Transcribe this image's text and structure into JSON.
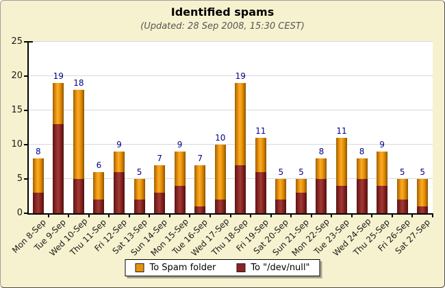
{
  "title": "Identified spams",
  "subtitle": "(Updated: 28 Sep 2008, 15:30 CEST)",
  "legend": {
    "items": [
      {
        "label": "To Spam folder",
        "color": "#E8920E"
      },
      {
        "label": "To \"/dev/null\"",
        "color": "#8C2321"
      }
    ]
  },
  "colors": {
    "background": "#F6F2CF",
    "plot_background": "#FFFFFF",
    "gridline": "#D9D9D9",
    "axis": "#000000",
    "value_label": "#00008B",
    "tick_label": "#1A1A1A",
    "subtitle_text": "#555555",
    "spam_folder": "#EE9311",
    "devnull": "#8E2A26"
  },
  "chart_data": {
    "type": "bar",
    "stacked": true,
    "title": "Identified spams",
    "subtitle": "(Updated: 28 Sep 2008, 15:30 CEST)",
    "categories": [
      "Mon 8-Sep",
      "Tue 9-Sep",
      "Wed 10-Sep",
      "Thu 11-Sep",
      "Fri 12-Sep",
      "Sat 13-Sep",
      "Sun 14-Sep",
      "Mon 15-Sep",
      "Tue 16-Sep",
      "Wed 17-Sep",
      "Thu 18-Sep",
      "Fri 19-Sep",
      "Sat 20-Sep",
      "Sun 21-Sep",
      "Mon 22-Sep",
      "Tue 23-Sep",
      "Wed 24-Sep",
      "Thu 25-Sep",
      "Fri 26-Sep",
      "Sat 27-Sep"
    ],
    "series": [
      {
        "name": "To \"/dev/null\"",
        "stack_position": "bottom",
        "color": "#8E2A26",
        "values": [
          3,
          13,
          5,
          2,
          6,
          2,
          3,
          4,
          1,
          2,
          7,
          6,
          2,
          3,
          5,
          4,
          5,
          4,
          2,
          1
        ]
      },
      {
        "name": "To Spam folder",
        "stack_position": "top",
        "color": "#EE9311",
        "values": [
          5,
          6,
          13,
          4,
          3,
          3,
          4,
          5,
          6,
          8,
          12,
          5,
          3,
          2,
          3,
          7,
          3,
          5,
          3,
          4
        ]
      }
    ],
    "totals": [
      8,
      19,
      18,
      6,
      9,
      5,
      7,
      9,
      7,
      10,
      19,
      11,
      5,
      5,
      8,
      11,
      8,
      9,
      5,
      5
    ],
    "ylim": [
      0,
      25
    ],
    "yticks": [
      0,
      5,
      10,
      15,
      20,
      25
    ],
    "grid": true,
    "legend_position": "bottom"
  }
}
